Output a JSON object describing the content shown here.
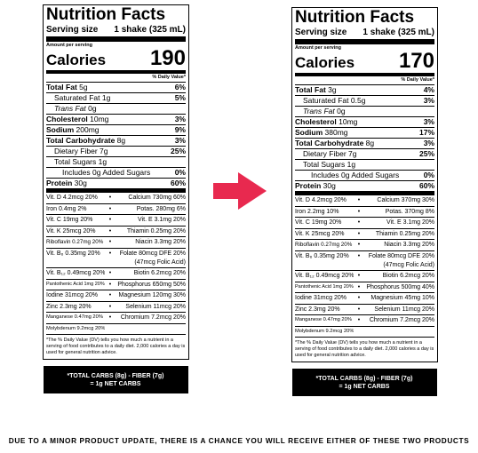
{
  "labels": [
    {
      "title": "Nutrition Facts",
      "serving_size_label": "Serving size",
      "serving_size_value": "1 shake (325 mL)",
      "amount_per_serving": "Amount per serving",
      "calories_label": "Calories",
      "calories_value": 190,
      "daily_value_header": "% Daily Value*",
      "nutrients": [
        {
          "name": "Total Fat",
          "amount": "5g",
          "dv": "6%"
        },
        {
          "name": "Saturated Fat",
          "amount": "1g",
          "dv": "5%"
        },
        {
          "name": "Trans Fat",
          "amount": "0g"
        },
        {
          "name": "Cholesterol",
          "amount": "10mg",
          "dv": "3%"
        },
        {
          "name": "Sodium",
          "amount": "200mg",
          "dv": "9%"
        },
        {
          "name": "Total Carbohydrate",
          "amount": "8g",
          "dv": "3%"
        },
        {
          "name": "Dietary Fiber",
          "amount": "7g",
          "dv": "25%"
        },
        {
          "name": "Total Sugars",
          "amount": "1g"
        },
        {
          "name": "Includes 0g Added Sugars",
          "amount": "",
          "dv": "0%"
        },
        {
          "name": "Protein",
          "amount": "30g",
          "dv": "60%"
        }
      ],
      "bullet": "•",
      "vitamins": [
        {
          "left": "Vit. D 4.2mcg 20%",
          "right": "Calcium 730mg 60%"
        },
        {
          "left": "Iron 0.4mg 2%",
          "right": "Potas. 280mg 6%"
        },
        {
          "left": "Vit. C 19mg 20%",
          "right": "Vit. E 3.1mg 20%"
        },
        {
          "left": "Vit. K 25mcg 20%",
          "right": "Thiamin 0.25mg 20%"
        },
        {
          "left": "Riboflavin 0.27mg 20%",
          "right": "Niacin 3.3mg 20%"
        },
        {
          "left": "Vit. B₆ 0.35mg 20%",
          "right": "Folate 80mcg DFE 20%",
          "note": "(47mcg Folic Acid)"
        },
        {
          "left": "Vit. B₁₂ 0.49mcg 20%",
          "right": "Biotin 6.2mcg 20%"
        },
        {
          "left": "Pantothenic Acid 1mg 20%",
          "right": "Phosphorus 650mg 50%"
        },
        {
          "left": "Iodine 31mcg 20%",
          "right": "Magnesium 120mg 30%"
        },
        {
          "left": "Zinc 2.3mg 20%",
          "right": "Selenium 11mcg 20%"
        },
        {
          "left": "Manganese 0.47mg 20%",
          "right": "Chromium 7.2mcg 20%"
        },
        {
          "left": "Molybdenum 9.2mcg 20%"
        }
      ],
      "footnote": "*The % Daily Value (DV) tells you how much a nutrient in a serving of food contributes to a daily diet. 2,000 calories a day is used for general nutrition advice.",
      "net_carbs": [
        "*TOTAL CARBS (8g) - FIBER (7g)",
        "= 1g NET CARBS"
      ]
    },
    {
      "title": "Nutrition Facts",
      "serving_size_label": "Serving size",
      "serving_size_value": "1 shake (325 mL)",
      "amount_per_serving": "Amount per serving",
      "calories_label": "Calories",
      "calories_value": 170,
      "daily_value_header": "% Daily Value*",
      "nutrients": [
        {
          "name": "Total Fat",
          "amount": "3g",
          "dv": "4%"
        },
        {
          "name": "Saturated Fat",
          "amount": "0.5g",
          "dv": "3%"
        },
        {
          "name": "Trans Fat",
          "amount": "0g"
        },
        {
          "name": "Cholesterol",
          "amount": "10mg",
          "dv": "3%"
        },
        {
          "name": "Sodium",
          "amount": "380mg",
          "dv": "17%"
        },
        {
          "name": "Total Carbohydrate",
          "amount": "8g",
          "dv": "3%"
        },
        {
          "name": "Dietary Fiber",
          "amount": "7g",
          "dv": "25%"
        },
        {
          "name": "Total Sugars",
          "amount": "1g"
        },
        {
          "name": "Includes 0g Added Sugars",
          "amount": "",
          "dv": "0%"
        },
        {
          "name": "Protein",
          "amount": "30g",
          "dv": "60%"
        }
      ],
      "bullet": "•",
      "vitamins": [
        {
          "left": "Vit. D 4.2mcg 20%",
          "right": "Calcium 370mg 30%"
        },
        {
          "left": "Iron 2.2mg 10%",
          "right": "Potas. 370mg 8%"
        },
        {
          "left": "Vit. C 19mg 20%",
          "right": "Vit. E 3.1mg 20%"
        },
        {
          "left": "Vit. K 25mcg 20%",
          "right": "Thiamin 0.25mg 20%"
        },
        {
          "left": "Riboflavin 0.27mg 20%",
          "right": "Niacin 3.3mg 20%"
        },
        {
          "left": "Vit. B₆ 0.35mg 20%",
          "right": "Folate 80mcg DFE 20%",
          "note": "(47mcg Folic Acid)"
        },
        {
          "left": "Vit. B₁₂ 0.49mcg 20%",
          "right": "Biotin 6.2mcg 20%"
        },
        {
          "left": "Pantothenic Acid 1mg 20%",
          "right": "Phosphorus 500mg 40%"
        },
        {
          "left": "Iodine 31mcg 20%",
          "right": "Magnesium 45mg 10%"
        },
        {
          "left": "Zinc 2.3mg 20%",
          "right": "Selenium 11mcg 20%"
        },
        {
          "left": "Manganese 0.47mg 20%",
          "right": "Chromium 7.2mcg 20%"
        },
        {
          "left": "Molybdenum 9.2mcg 20%"
        }
      ],
      "footnote": "*The % Daily Value (DV) tells you how much a nutrient in a serving of food contributes to a daily diet. 2,000 calories a day is used for general nutrition advice.",
      "net_carbs": [
        "*TOTAL CARBS (8g) - FIBER (7g)",
        "= 1g NET CARBS"
      ]
    }
  ],
  "footer": "DUE TO A MINOR PRODUCT UPDATE, THERE IS A CHANCE YOU WILL RECEIVE EITHER OF THESE TWO PRODUCTS"
}
